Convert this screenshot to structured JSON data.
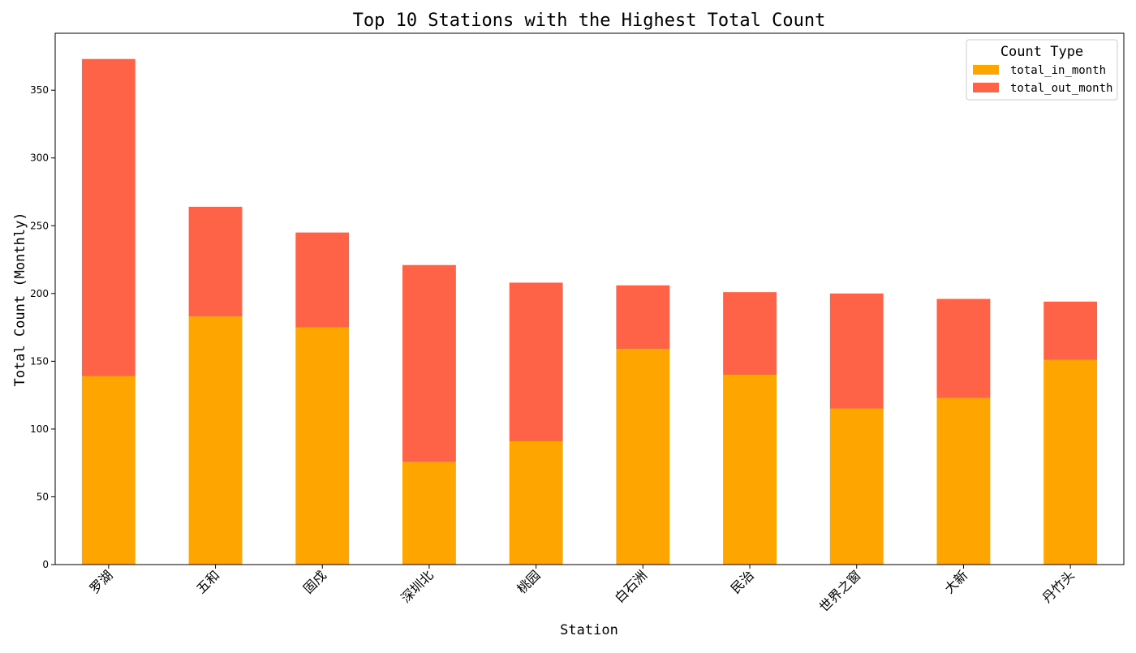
{
  "chart_data": {
    "type": "bar",
    "stacked": true,
    "title": "Top 10 Stations with the Highest Total Count",
    "xlabel": "Station",
    "ylabel": "Total Count (Monthly)",
    "categories": [
      "罗湖",
      "五和",
      "固戍",
      "深圳北",
      "桃园",
      "白石洲",
      "民治",
      "世界之窗",
      "大新",
      "丹竹头"
    ],
    "series": [
      {
        "name": "total_in_month",
        "color": "#FFA500",
        "values": [
          139,
          183,
          175,
          76,
          91,
          159,
          140,
          115,
          123,
          151
        ]
      },
      {
        "name": "total_out_month",
        "color": "#FF6347",
        "values": [
          234,
          81,
          70,
          145,
          117,
          47,
          61,
          85,
          73,
          43
        ]
      }
    ],
    "ylim": [
      0,
      392
    ],
    "yticks": [
      0,
      50,
      100,
      150,
      200,
      250,
      300,
      350
    ],
    "grid": false,
    "legend": {
      "title": "Count Type",
      "placement": "top-right"
    }
  }
}
